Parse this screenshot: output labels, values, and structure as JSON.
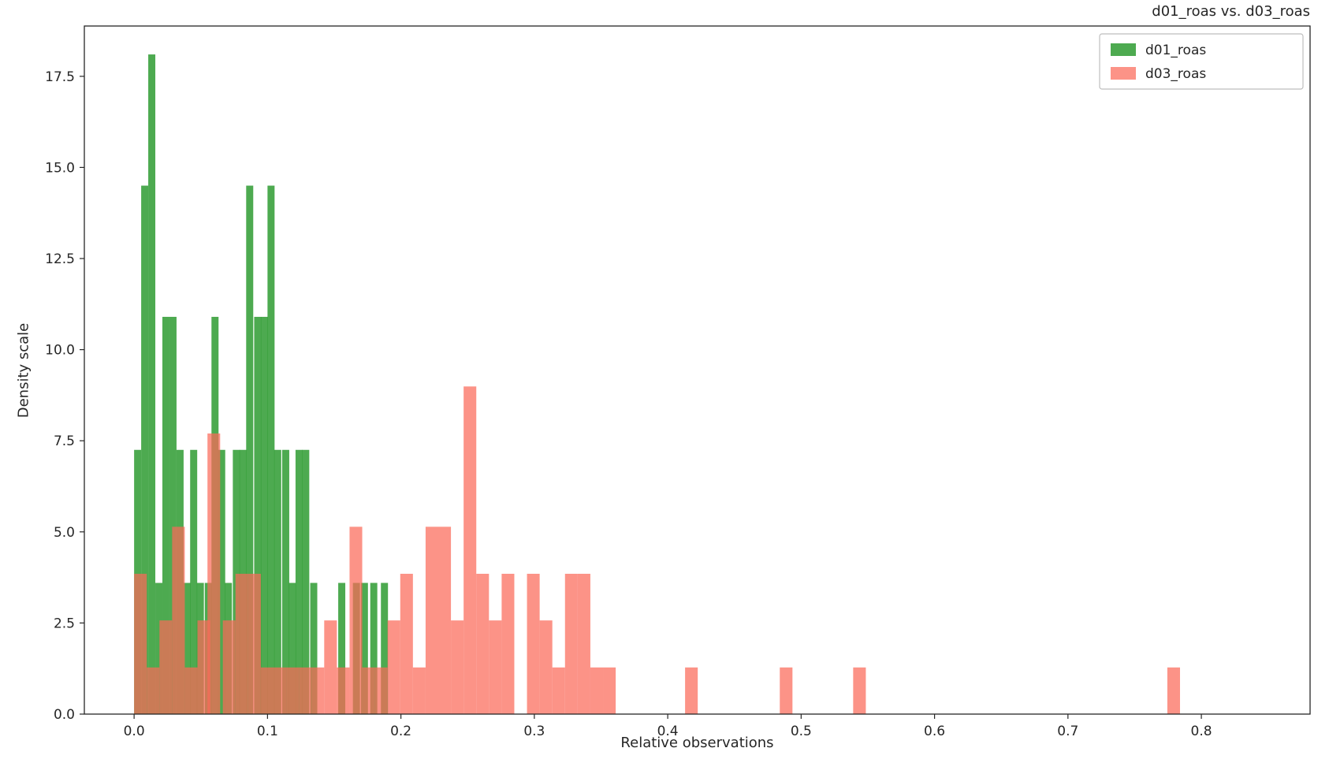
{
  "chart": {
    "title": "d01_roas vs. d03_roas",
    "xlabel": "Relative observations",
    "ylabel": "Density scale"
  },
  "chart_data": {
    "type": "bar",
    "subtype": "histogram-overlay",
    "title": "d01_roas vs. d03_roas",
    "xlabel": "Relative observations",
    "ylabel": "Density scale",
    "xlim": [
      -0.0373,
      0.8815
    ],
    "ylim": [
      0,
      18.88
    ],
    "x_ticks": [
      0.0,
      0.1,
      0.2,
      0.3,
      0.4,
      0.5,
      0.6,
      0.7,
      0.8
    ],
    "y_ticks": [
      0.0,
      2.5,
      5.0,
      7.5,
      10.0,
      12.5,
      15.0,
      17.5
    ],
    "grid": false,
    "legend_position": "upper right",
    "axis_color": "#262626",
    "legend_border_color": "#bdbdbd",
    "series": [
      {
        "name": "d01_roas",
        "color": "#2e9b31",
        "opacity": 0.85,
        "bin_width": 0.0053,
        "bins": [
          [
            0.0,
            7.25
          ],
          [
            0.0053,
            14.5
          ],
          [
            0.0106,
            18.1
          ],
          [
            0.0159,
            3.6
          ],
          [
            0.0212,
            10.9
          ],
          [
            0.0265,
            10.9
          ],
          [
            0.0318,
            7.25
          ],
          [
            0.037,
            3.6
          ],
          [
            0.042,
            7.25
          ],
          [
            0.047,
            3.6
          ],
          [
            0.053,
            3.6
          ],
          [
            0.058,
            10.9
          ],
          [
            0.063,
            7.25
          ],
          [
            0.068,
            3.6
          ],
          [
            0.074,
            7.25
          ],
          [
            0.079,
            7.25
          ],
          [
            0.084,
            14.5
          ],
          [
            0.09,
            10.9
          ],
          [
            0.095,
            10.9
          ],
          [
            0.1,
            14.5
          ],
          [
            0.105,
            7.25
          ],
          [
            0.111,
            7.25
          ],
          [
            0.116,
            3.6
          ],
          [
            0.121,
            7.25
          ],
          [
            0.126,
            7.25
          ],
          [
            0.132,
            3.6
          ],
          [
            0.153,
            3.6
          ],
          [
            0.164,
            3.6
          ],
          [
            0.17,
            3.6
          ],
          [
            0.177,
            3.6
          ],
          [
            0.185,
            3.6
          ]
        ]
      },
      {
        "name": "d03_roas",
        "color": "#fb6a59",
        "opacity": 0.72,
        "bin_width": 0.0095,
        "bins": [
          [
            0.0,
            3.85
          ],
          [
            0.0095,
            1.28
          ],
          [
            0.019,
            2.57
          ],
          [
            0.0285,
            5.14
          ],
          [
            0.038,
            1.28
          ],
          [
            0.0475,
            2.57
          ],
          [
            0.055,
            7.7
          ],
          [
            0.0665,
            2.57
          ],
          [
            0.076,
            3.85
          ],
          [
            0.0855,
            3.85
          ],
          [
            0.095,
            1.28
          ],
          [
            0.1045,
            1.28
          ],
          [
            0.114,
            1.28
          ],
          [
            0.1235,
            1.28
          ],
          [
            0.133,
            1.28
          ],
          [
            0.1425,
            2.57
          ],
          [
            0.152,
            1.28
          ],
          [
            0.1615,
            5.14
          ],
          [
            0.171,
            1.28
          ],
          [
            0.1805,
            1.28
          ],
          [
            0.19,
            2.57
          ],
          [
            0.1995,
            3.85
          ],
          [
            0.209,
            1.28
          ],
          [
            0.2185,
            5.14
          ],
          [
            0.228,
            5.14
          ],
          [
            0.2375,
            2.57
          ],
          [
            0.247,
            8.99
          ],
          [
            0.2565,
            3.85
          ],
          [
            0.266,
            2.57
          ],
          [
            0.2755,
            3.85
          ],
          [
            0.2945,
            3.85
          ],
          [
            0.304,
            2.57
          ],
          [
            0.3135,
            1.28
          ],
          [
            0.323,
            3.85
          ],
          [
            0.3325,
            3.85
          ],
          [
            0.342,
            1.28
          ],
          [
            0.3515,
            1.28
          ],
          [
            0.413,
            1.28
          ],
          [
            0.484,
            1.28
          ],
          [
            0.539,
            1.28
          ],
          [
            0.7745,
            1.28
          ]
        ]
      }
    ]
  }
}
